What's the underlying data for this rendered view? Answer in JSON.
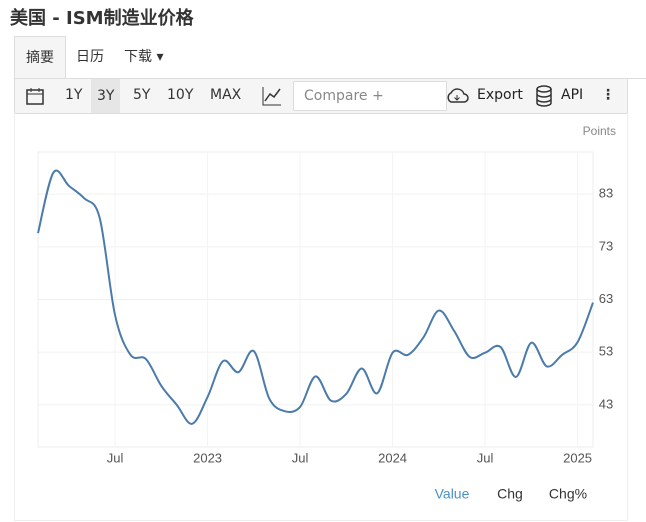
{
  "ui": {
    "title": "美国 - ISM制造业价格",
    "tabs": [
      "摘要",
      "日历",
      "下载"
    ],
    "ranges": [
      "1Y",
      "3Y",
      "5Y",
      "10Y",
      "MAX"
    ],
    "compare": "Compare +",
    "export": "Export",
    "api": "API",
    "views": [
      "Value",
      "Chg",
      "Chg%"
    ]
  },
  "chart_data": {
    "type": "line",
    "y_label": "Points",
    "categories": [
      null,
      null,
      null,
      null,
      null,
      "Jul",
      null,
      null,
      null,
      null,
      null,
      "2023",
      null,
      null,
      null,
      null,
      null,
      "Jul",
      null,
      null,
      null,
      null,
      null,
      "2024",
      null,
      null,
      null,
      null,
      null,
      "Jul",
      null,
      null,
      null,
      null,
      null,
      "2025",
      null
    ],
    "series": [
      {
        "name": "Value",
        "color": "#4a7bab",
        "values": [
          75.6,
          87.1,
          84.6,
          82.2,
          78.5,
          60.0,
          52.5,
          51.7,
          46.6,
          43.0,
          39.4,
          44.5,
          51.3,
          49.2,
          53.2,
          44.2,
          41.8,
          42.6,
          48.4,
          43.8,
          45.1,
          49.9,
          45.2,
          52.9,
          52.5,
          55.8,
          60.9,
          57.0,
          52.1,
          52.9,
          54.0,
          48.3,
          54.8,
          50.3,
          52.5,
          54.9,
          62.4
        ]
      }
    ],
    "ylim": [
      35,
      91
    ],
    "yticks": [
      43,
      53,
      63,
      73,
      83
    ],
    "grid": true
  }
}
